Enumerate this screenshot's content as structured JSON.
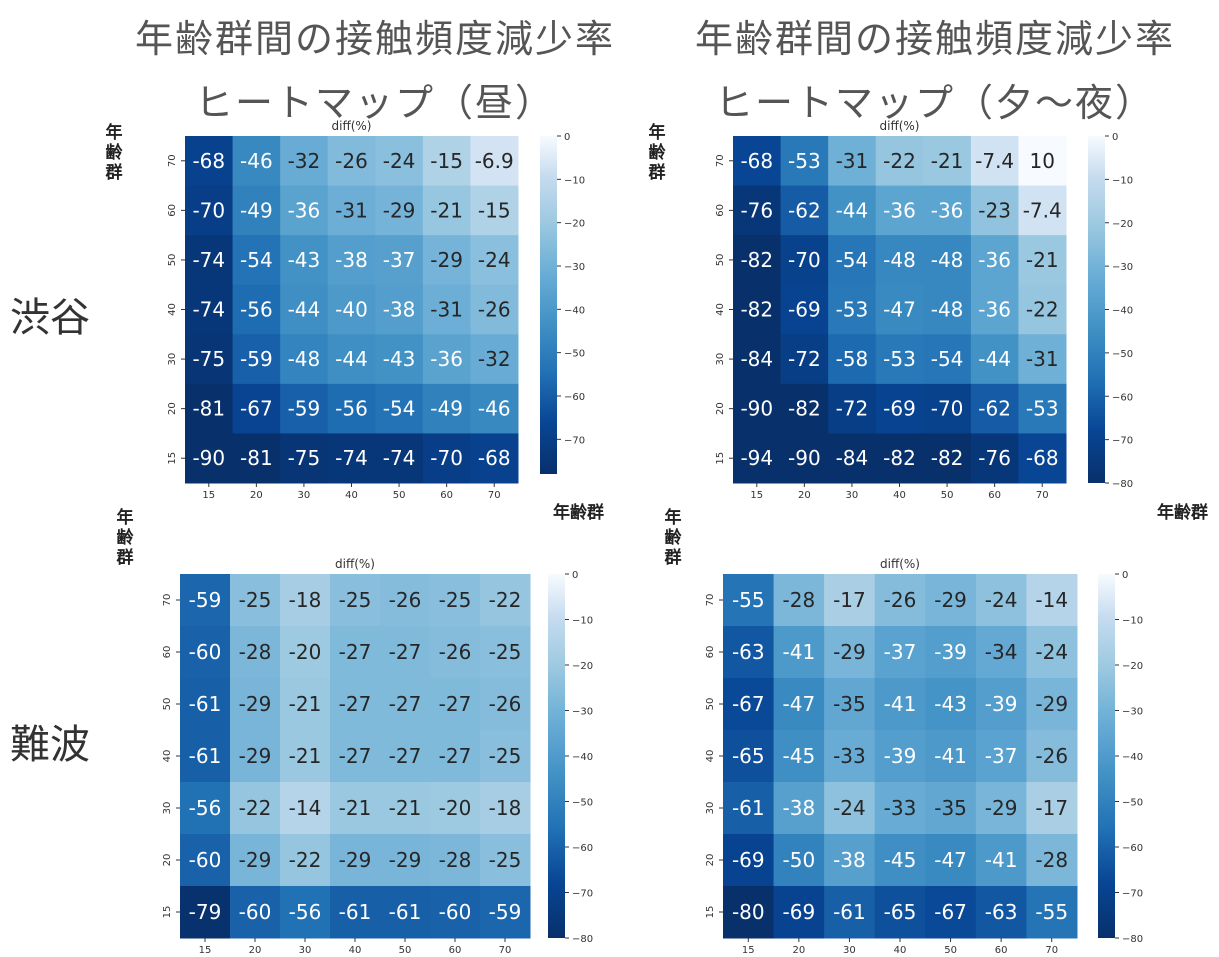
{
  "titles": {
    "left_line1": "年齢群間の接触頻度減少率",
    "left_line2": "ヒートマップ（昼）",
    "right_line1": "年齢群間の接触頻度減少率",
    "right_line2": "ヒートマップ（夕〜夜）"
  },
  "row_labels": {
    "top": "渋谷",
    "bottom": "難波"
  },
  "axis_labels": {
    "y": "年齢群",
    "x": "年齢群"
  },
  "chart_data": [
    {
      "type": "heatmap",
      "title": "diff(%)",
      "x_categories": [
        "15",
        "20",
        "30",
        "40",
        "50",
        "60",
        "70"
      ],
      "y_categories_top_to_bottom": [
        "70",
        "60",
        "50",
        "40",
        "30",
        "20",
        "15"
      ],
      "values": [
        [
          -68,
          -46,
          -32,
          -26,
          -24,
          -15,
          -6.9
        ],
        [
          -70,
          -49,
          -36,
          -31,
          -29,
          -21,
          -15
        ],
        [
          -74,
          -54,
          -43,
          -38,
          -37,
          -29,
          -24
        ],
        [
          -74,
          -56,
          -44,
          -40,
          -38,
          -31,
          -26
        ],
        [
          -75,
          -59,
          -48,
          -44,
          -43,
          -36,
          -32
        ],
        [
          -81,
          -67,
          -59,
          -56,
          -54,
          -49,
          -46
        ],
        [
          -90,
          -81,
          -75,
          -74,
          -74,
          -70,
          -68
        ]
      ],
      "colorbar_ticks": [
        0,
        -10,
        -20,
        -30,
        -40,
        -50,
        -60,
        -70
      ],
      "vmin": -78,
      "vmax": 0,
      "colormap": "Blues_r"
    },
    {
      "type": "heatmap",
      "title": "diff(%)",
      "x_categories": [
        "15",
        "20",
        "30",
        "40",
        "50",
        "60",
        "70"
      ],
      "y_categories_top_to_bottom": [
        "70",
        "60",
        "50",
        "40",
        "30",
        "20",
        "15"
      ],
      "values": [
        [
          -68,
          -53,
          -31,
          -22,
          -21,
          -7.4,
          10
        ],
        [
          -76,
          -62,
          -44,
          -36,
          -36,
          -23,
          -7.4
        ],
        [
          -82,
          -70,
          -54,
          -48,
          -48,
          -36,
          -21
        ],
        [
          -82,
          -69,
          -53,
          -47,
          -48,
          -36,
          -22
        ],
        [
          -84,
          -72,
          -58,
          -53,
          -54,
          -44,
          -31
        ],
        [
          -90,
          -82,
          -72,
          -69,
          -70,
          -62,
          -53
        ],
        [
          -94,
          -90,
          -84,
          -82,
          -82,
          -76,
          -68
        ]
      ],
      "colorbar_ticks": [
        0,
        -10,
        -20,
        -30,
        -40,
        -50,
        -60,
        -70,
        -80
      ],
      "vmin": -80,
      "vmax": 0,
      "colormap": "Blues_r"
    },
    {
      "type": "heatmap",
      "title": "diff(%)",
      "x_categories": [
        "15",
        "20",
        "30",
        "40",
        "50",
        "60",
        "70"
      ],
      "y_categories_top_to_bottom": [
        "70",
        "60",
        "50",
        "40",
        "30",
        "20",
        "15"
      ],
      "values": [
        [
          -59,
          -25,
          -18,
          -25,
          -26,
          -25,
          -22
        ],
        [
          -60,
          -28,
          -20,
          -27,
          -27,
          -26,
          -25
        ],
        [
          -61,
          -29,
          -21,
          -27,
          -27,
          -27,
          -26
        ],
        [
          -61,
          -29,
          -21,
          -27,
          -27,
          -27,
          -25
        ],
        [
          -56,
          -22,
          -14,
          -21,
          -21,
          -20,
          -18
        ],
        [
          -60,
          -29,
          -22,
          -29,
          -29,
          -28,
          -25
        ],
        [
          -79,
          -60,
          -56,
          -61,
          -61,
          -60,
          -59
        ]
      ],
      "colorbar_ticks": [
        0,
        -10,
        -20,
        -30,
        -40,
        -50,
        -60,
        -70,
        -80
      ],
      "vmin": -80,
      "vmax": 0,
      "colormap": "Blues_r"
    },
    {
      "type": "heatmap",
      "title": "diff(%)",
      "x_categories": [
        "15",
        "20",
        "30",
        "40",
        "50",
        "60",
        "70"
      ],
      "y_categories_top_to_bottom": [
        "70",
        "60",
        "50",
        "40",
        "30",
        "20",
        "15"
      ],
      "values": [
        [
          -55,
          -28,
          -17,
          -26,
          -29,
          -24,
          -14
        ],
        [
          -63,
          -41,
          -29,
          -37,
          -39,
          -34,
          -24
        ],
        [
          -67,
          -47,
          -35,
          -41,
          -43,
          -39,
          -29
        ],
        [
          -65,
          -45,
          -33,
          -39,
          -41,
          -37,
          -26
        ],
        [
          -61,
          -38,
          -24,
          -33,
          -35,
          -29,
          -17
        ],
        [
          -69,
          -50,
          -38,
          -45,
          -47,
          -41,
          -28
        ],
        [
          -80,
          -69,
          -61,
          -65,
          -67,
          -63,
          -55
        ]
      ],
      "colorbar_ticks": [
        0,
        -10,
        -20,
        -30,
        -40,
        -50,
        -60,
        -70,
        -80
      ],
      "vmin": -80,
      "vmax": 0,
      "colormap": "Blues_r"
    }
  ]
}
